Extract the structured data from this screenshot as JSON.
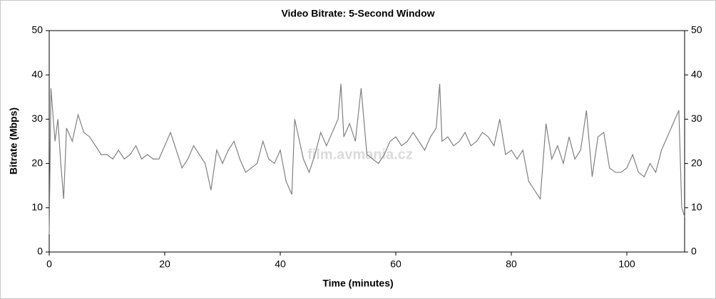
{
  "chart_data": {
    "type": "line",
    "title": "Video Bitrate: 5-Second Window",
    "x_label": "Time (minutes)",
    "y_label": "Bitrate (Mbps)",
    "watermark": "film.avmania.cz",
    "xlim": [
      0,
      110
    ],
    "xticks": [
      0,
      20,
      40,
      60,
      80,
      100
    ],
    "ylim": [
      0,
      50
    ],
    "yticks": [
      0,
      10,
      20,
      30,
      40,
      50
    ],
    "series": [
      {
        "name": "Bitrate",
        "color": "#808080",
        "x": [
          0,
          0.3,
          1,
          1.5,
          2,
          2.5,
          3,
          4,
          5,
          6,
          7,
          8,
          9,
          10,
          11,
          12,
          13,
          14,
          15,
          16,
          17,
          18,
          19,
          20,
          21,
          22,
          23,
          24,
          25,
          26,
          27,
          28,
          29,
          30,
          31,
          32,
          33,
          34,
          35,
          36,
          37,
          38,
          39,
          40,
          41,
          42,
          42.5,
          43,
          44,
          45,
          46,
          47,
          48,
          49,
          50,
          50.5,
          51,
          52,
          53,
          54,
          55,
          56,
          57,
          58,
          59,
          60,
          61,
          62,
          63,
          64,
          65,
          66,
          67,
          67.6,
          68,
          69,
          70,
          71,
          72,
          73,
          74,
          75,
          76,
          77,
          78,
          79,
          80,
          81,
          82,
          83,
          84,
          85,
          86,
          87,
          88,
          89,
          90,
          91,
          92,
          93,
          94,
          95,
          96,
          97,
          98,
          99,
          100,
          101,
          102,
          103,
          104,
          105,
          106,
          107,
          108,
          109,
          109.5,
          110
        ],
        "values": [
          4,
          37,
          25,
          30,
          20,
          12,
          28,
          25,
          31,
          27,
          26,
          24,
          22,
          22,
          21,
          23,
          21,
          22,
          24,
          21,
          22,
          21,
          21,
          24,
          27,
          23,
          19,
          21,
          24,
          22,
          20,
          14,
          23,
          20,
          23,
          25,
          21,
          18,
          19,
          20,
          25,
          21,
          20,
          23,
          16,
          13,
          30,
          27,
          21,
          18,
          22,
          27,
          24,
          27,
          30,
          38,
          26,
          29,
          25,
          37,
          22,
          21,
          20,
          22,
          25,
          26,
          24,
          25,
          27,
          25,
          23,
          26,
          28,
          38,
          25,
          26,
          24,
          25,
          27,
          24,
          25,
          27,
          26,
          24,
          30,
          22,
          23,
          21,
          23,
          16,
          14,
          12,
          29,
          21,
          24,
          20,
          26,
          21,
          23,
          32,
          17,
          26,
          27,
          19,
          18,
          18,
          19,
          22,
          18,
          17,
          20,
          18,
          23,
          26,
          29,
          32,
          10,
          8
        ]
      }
    ]
  }
}
